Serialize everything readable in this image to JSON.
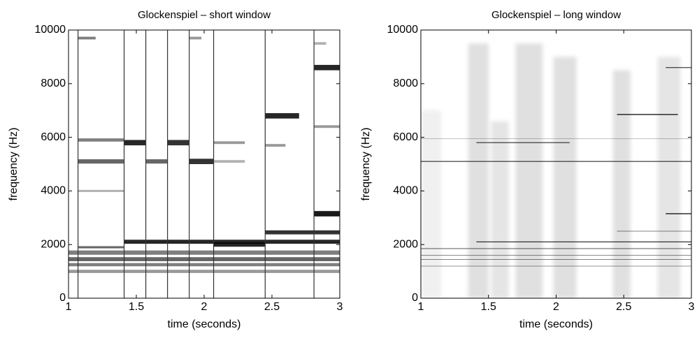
{
  "chart_data": [
    {
      "type": "spectrogram",
      "title": "Glockenspiel – short window",
      "xlabel": "time (seconds)",
      "ylabel": "frequency (Hz)",
      "xlim": [
        1,
        3
      ],
      "ylim": [
        0,
        10000
      ],
      "xticks": [
        1,
        1.5,
        2,
        2.5,
        3
      ],
      "yticks": [
        0,
        2000,
        4000,
        6000,
        8000,
        10000
      ],
      "onsets": [
        1.07,
        1.41,
        1.57,
        1.73,
        1.89,
        2.07,
        2.45,
        2.81
      ],
      "bands": [
        {
          "t": [
            1,
            3
          ],
          "f": [
            940,
            1060
          ],
          "level": 0.4
        },
        {
          "t": [
            1,
            3
          ],
          "f": [
            1190,
            1310
          ],
          "level": 0.5
        },
        {
          "t": [
            1,
            3
          ],
          "f": [
            1380,
            1530
          ],
          "level": 0.6
        },
        {
          "t": [
            1,
            3
          ],
          "f": [
            1620,
            1780
          ],
          "level": 0.5
        },
        {
          "t": [
            1.07,
            1.41
          ],
          "f": [
            1860,
            1940
          ],
          "level": 0.6
        },
        {
          "t": [
            1.41,
            3
          ],
          "f": [
            2030,
            2180
          ],
          "level": 0.85
        },
        {
          "t": [
            2.07,
            2.45
          ],
          "f": [
            1920,
            2080
          ],
          "level": 0.85
        },
        {
          "t": [
            2.45,
            3
          ],
          "f": [
            2380,
            2530
          ],
          "level": 0.8
        },
        {
          "t": [
            2.81,
            3
          ],
          "f": [
            3050,
            3250
          ],
          "level": 0.9
        },
        {
          "t": [
            1.07,
            1.41
          ],
          "f": [
            5020,
            5180
          ],
          "level": 0.6
        },
        {
          "t": [
            1.07,
            1.41
          ],
          "f": [
            5840,
            5960
          ],
          "level": 0.5
        },
        {
          "t": [
            1.07,
            1.41
          ],
          "f": [
            3960,
            4040
          ],
          "level": 0.3
        },
        {
          "t": [
            1.07,
            1.2
          ],
          "f": [
            9650,
            9750
          ],
          "level": 0.5
        },
        {
          "t": [
            1.41,
            1.57
          ],
          "f": [
            5700,
            5900
          ],
          "level": 0.85
        },
        {
          "t": [
            1.57,
            1.73
          ],
          "f": [
            5020,
            5180
          ],
          "level": 0.6
        },
        {
          "t": [
            1.73,
            1.89
          ],
          "f": [
            5700,
            5900
          ],
          "level": 0.8
        },
        {
          "t": [
            1.89,
            2.07
          ],
          "f": [
            5000,
            5200
          ],
          "level": 0.8
        },
        {
          "t": [
            2.07,
            2.3
          ],
          "f": [
            5750,
            5850
          ],
          "level": 0.4
        },
        {
          "t": [
            2.07,
            2.3
          ],
          "f": [
            5050,
            5150
          ],
          "level": 0.3
        },
        {
          "t": [
            2.45,
            2.7
          ],
          "f": [
            6700,
            6900
          ],
          "level": 0.85
        },
        {
          "t": [
            2.45,
            2.6
          ],
          "f": [
            5650,
            5750
          ],
          "level": 0.4
        },
        {
          "t": [
            2.81,
            3
          ],
          "f": [
            8500,
            8700
          ],
          "level": 0.85
        },
        {
          "t": [
            2.81,
            3
          ],
          "f": [
            6350,
            6450
          ],
          "level": 0.4
        },
        {
          "t": [
            2.81,
            2.9
          ],
          "f": [
            9450,
            9550
          ],
          "level": 0.3
        },
        {
          "t": [
            1.89,
            1.98
          ],
          "f": [
            9650,
            9750
          ],
          "level": 0.4
        }
      ]
    },
    {
      "type": "spectrogram",
      "title": "Glockenspiel – long window",
      "xlabel": "time (seconds)",
      "ylabel": "frequency (Hz)",
      "xlim": [
        1,
        3
      ],
      "ylim": [
        0,
        10000
      ],
      "xticks": [
        1,
        1.5,
        2,
        2.5,
        3
      ],
      "yticks": [
        0,
        2000,
        4000,
        6000,
        8000,
        10000
      ],
      "onsets": [],
      "bands": [
        {
          "t": [
            1.35,
            1.5
          ],
          "f": [
            0,
            9500
          ],
          "level": 0.12
        },
        {
          "t": [
            1.52,
            1.65
          ],
          "f": [
            0,
            6600
          ],
          "level": 0.1
        },
        {
          "t": [
            1.7,
            1.9
          ],
          "f": [
            0,
            9500
          ],
          "level": 0.12
        },
        {
          "t": [
            1.98,
            2.15
          ],
          "f": [
            0,
            9000
          ],
          "level": 0.12
        },
        {
          "t": [
            2.42,
            2.55
          ],
          "f": [
            0,
            8500
          ],
          "level": 0.12
        },
        {
          "t": [
            2.75,
            2.92
          ],
          "f": [
            0,
            9000
          ],
          "level": 0.1
        },
        {
          "t": [
            1,
            1.15
          ],
          "f": [
            0,
            7000
          ],
          "level": 0.06
        },
        {
          "t": [
            1,
            3
          ],
          "f": [
            5085,
            5115
          ],
          "level": 0.8
        },
        {
          "t": [
            1,
            3
          ],
          "f": [
            1840,
            1860
          ],
          "level": 0.8
        },
        {
          "t": [
            1,
            3
          ],
          "f": [
            1593,
            1607
          ],
          "level": 0.6
        },
        {
          "t": [
            1,
            3
          ],
          "f": [
            1443,
            1457
          ],
          "level": 0.6
        },
        {
          "t": [
            1,
            3
          ],
          "f": [
            1193,
            1207
          ],
          "level": 0.5
        },
        {
          "t": [
            1.41,
            3
          ],
          "f": [
            2085,
            2115
          ],
          "level": 0.85
        },
        {
          "t": [
            2.45,
            3
          ],
          "f": [
            2490,
            2510
          ],
          "level": 0.6
        },
        {
          "t": [
            2.81,
            3
          ],
          "f": [
            3130,
            3170
          ],
          "level": 0.8
        },
        {
          "t": [
            2.45,
            2.9
          ],
          "f": [
            6830,
            6870
          ],
          "level": 0.8
        },
        {
          "t": [
            2.81,
            3
          ],
          "f": [
            8585,
            8615
          ],
          "level": 0.8
        },
        {
          "t": [
            1.41,
            2.1
          ],
          "f": [
            5780,
            5820
          ],
          "level": 0.6
        },
        {
          "t": [
            1,
            3
          ],
          "f": [
            5943,
            5957
          ],
          "level": 0.3
        }
      ]
    }
  ]
}
